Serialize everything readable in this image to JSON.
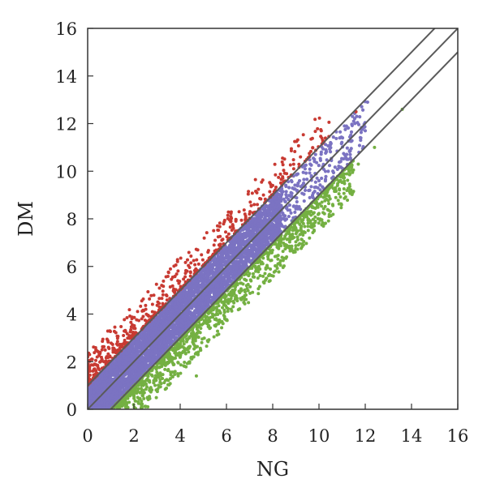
{
  "chart_data": {
    "type": "scatter",
    "title": "",
    "xlabel": "NG",
    "ylabel": "DM",
    "xlim": [
      0,
      16
    ],
    "ylim": [
      0,
      16
    ],
    "xticks": [
      "0",
      "2",
      "4",
      "6",
      "8",
      "10",
      "12",
      "14",
      "16"
    ],
    "yticks": [
      "0",
      "2",
      "4",
      "6",
      "8",
      "10",
      "12",
      "14",
      "16"
    ],
    "grid": false,
    "legend": "none",
    "reference_lines": [
      {
        "slope": 1,
        "intercept": 1
      },
      {
        "slope": 1,
        "intercept": 0
      },
      {
        "slope": 1,
        "intercept": -1
      }
    ],
    "series": [
      {
        "color": "#7b73c2",
        "description_role": "within_band",
        "band": [
          -1,
          1
        ],
        "x_range": [
          0,
          12.2
        ],
        "points": [
          [
            8.6,
            8.9
          ],
          [
            8.9,
            9.8
          ],
          [
            9.2,
            8.4
          ],
          [
            9.4,
            10.1
          ],
          [
            9.6,
            9.2
          ],
          [
            9.8,
            10.5
          ],
          [
            10.0,
            9.6
          ],
          [
            10.3,
            10.9
          ],
          [
            10.6,
            10.0
          ],
          [
            10.9,
            11.4
          ],
          [
            11.2,
            10.5
          ],
          [
            11.5,
            12.1
          ],
          [
            11.8,
            11.3
          ],
          [
            12.1,
            12.9
          ],
          [
            12.0,
            11.7
          ],
          [
            10.1,
            10.8
          ],
          [
            9.1,
            9.5
          ],
          [
            8.7,
            8.1
          ],
          [
            10.5,
            11.2
          ],
          [
            11.1,
            11.9
          ]
        ]
      },
      {
        "color": "#c83a32",
        "description_role": "above_band",
        "points": [
          [
            0.0,
            1.3
          ],
          [
            0.0,
            2.2
          ],
          [
            0.1,
            1.6
          ],
          [
            0.2,
            2.1
          ],
          [
            0.3,
            1.9
          ],
          [
            0.5,
            2.3
          ],
          [
            0.7,
            2.0
          ],
          [
            0.9,
            2.6
          ],
          [
            1.1,
            2.4
          ],
          [
            1.3,
            2.7
          ],
          [
            1.6,
            2.9
          ],
          [
            2.0,
            3.4
          ],
          [
            2.4,
            3.9
          ],
          [
            2.8,
            4.1
          ],
          [
            3.1,
            4.3
          ],
          [
            3.4,
            4.8
          ],
          [
            3.9,
            5.4
          ],
          [
            4.3,
            5.8
          ],
          [
            4.8,
            6.1
          ],
          [
            5.2,
            6.6
          ],
          [
            5.8,
            7.1
          ],
          [
            6.3,
            7.6
          ],
          [
            6.8,
            8.2
          ],
          [
            7.2,
            8.6
          ],
          [
            7.6,
            9.0
          ],
          [
            8.0,
            9.4
          ],
          [
            8.6,
            9.9
          ],
          [
            9.2,
            10.6
          ],
          [
            10.1,
            11.7
          ],
          [
            11.6,
            12.5
          ]
        ]
      },
      {
        "color": "#74b042",
        "description_role": "below_band",
        "points": [
          [
            1.3,
            0.0
          ],
          [
            1.6,
            0.3
          ],
          [
            2.0,
            0.6
          ],
          [
            2.4,
            1.0
          ],
          [
            2.8,
            1.4
          ],
          [
            3.2,
            1.8
          ],
          [
            3.6,
            2.2
          ],
          [
            4.0,
            2.6
          ],
          [
            4.4,
            3.0
          ],
          [
            4.7,
            1.4
          ],
          [
            5.0,
            3.6
          ],
          [
            5.4,
            4.0
          ],
          [
            5.8,
            4.5
          ],
          [
            6.2,
            4.9
          ],
          [
            6.6,
            5.3
          ],
          [
            7.0,
            5.7
          ],
          [
            7.4,
            6.0
          ],
          [
            7.8,
            6.5
          ],
          [
            8.3,
            7.0
          ],
          [
            8.6,
            6.4
          ],
          [
            9.0,
            7.6
          ],
          [
            9.6,
            8.3
          ],
          [
            10.2,
            8.9
          ],
          [
            10.8,
            9.4
          ],
          [
            11.3,
            10.0
          ],
          [
            11.7,
            10.3
          ],
          [
            12.4,
            11.0
          ],
          [
            13.6,
            12.6
          ]
        ]
      }
    ]
  }
}
